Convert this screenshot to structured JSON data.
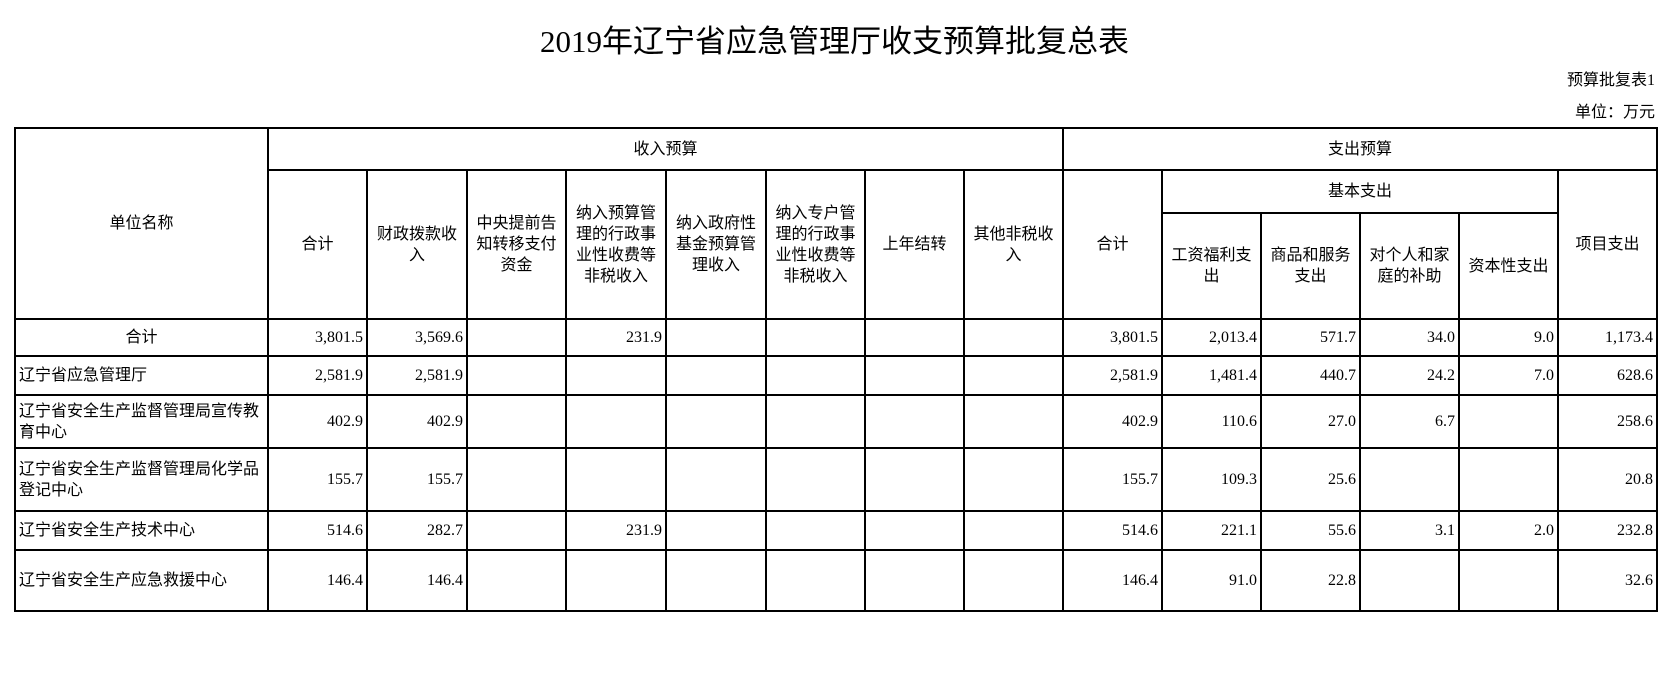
{
  "title": "2019年辽宁省应急管理厅收支预算批复总表",
  "table_no": "预算批复表1",
  "unit": "单位：万元",
  "headers": {
    "unit_name": "单位名称",
    "income": "收入预算",
    "expense": "支出预算",
    "income_cols": [
      "合计",
      "财政拨款收入",
      "中央提前告知转移支付资金",
      "纳入预算管理的行政事业性收费等非税收入",
      "纳入政府性基金预算管理收入",
      "纳入专户管理的行政事业性收费等非税收入",
      "上年结转",
      "其他非税收入"
    ],
    "expense_total": "合计",
    "basic": "基本支出",
    "basic_cols": [
      "工资福利支出",
      "商品和服务支出",
      "对个人和家庭的补助",
      "资本性支出"
    ],
    "project": "项目支出"
  },
  "rows": [
    {
      "name": "合计",
      "values": [
        "3,801.5",
        "3,569.6",
        "",
        "231.9",
        "",
        "",
        "",
        "",
        "3,801.5",
        "2,013.4",
        "571.7",
        "34.0",
        "9.0",
        "1,173.4"
      ]
    },
    {
      "name": "辽宁省应急管理厅",
      "values": [
        "2,581.9",
        "2,581.9",
        "",
        "",
        "",
        "",
        "",
        "",
        "2,581.9",
        "1,481.4",
        "440.7",
        "24.2",
        "7.0",
        "628.6"
      ]
    },
    {
      "name": "辽宁省安全生产监督管理局宣传教育中心",
      "values": [
        "402.9",
        "402.9",
        "",
        "",
        "",
        "",
        "",
        "",
        "402.9",
        "110.6",
        "27.0",
        "6.7",
        "",
        "258.6"
      ]
    },
    {
      "name": "辽宁省安全生产监督管理局化学品登记中心",
      "values": [
        "155.7",
        "155.7",
        "",
        "",
        "",
        "",
        "",
        "",
        "155.7",
        "109.3",
        "25.6",
        "",
        "",
        "20.8"
      ]
    },
    {
      "name": "辽宁省安全生产技术中心",
      "values": [
        "514.6",
        "282.7",
        "",
        "231.9",
        "",
        "",
        "",
        "",
        "514.6",
        "221.1",
        "55.6",
        "3.1",
        "2.0",
        "232.8"
      ]
    },
    {
      "name": "辽宁省安全生产应急救援中心",
      "values": [
        "146.4",
        "146.4",
        "",
        "",
        "",
        "",
        "",
        "",
        "146.4",
        "91.0",
        "22.8",
        "",
        "",
        "32.6"
      ]
    }
  ]
}
